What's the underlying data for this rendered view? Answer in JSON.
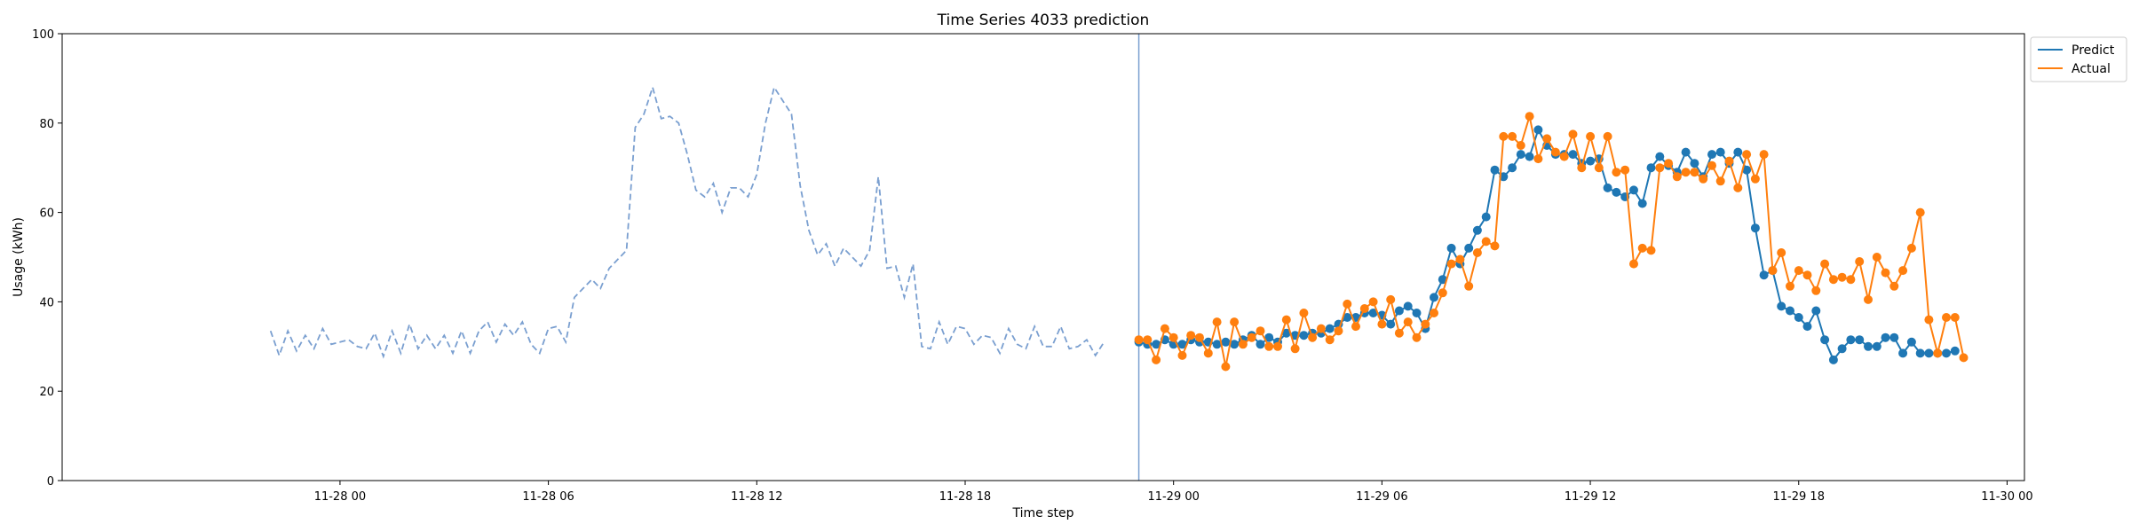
{
  "chart_data": {
    "type": "line",
    "title": "Time Series 4033 prediction",
    "xlabel": "Time step",
    "ylabel": "Usage (kWh)",
    "ylim": [
      0,
      100
    ],
    "xlim": [
      "2024-11-27 16:00",
      "2024-11-30 00:30"
    ],
    "yticks": [
      0,
      20,
      40,
      60,
      80,
      100
    ],
    "xticks": [
      {
        "t": "2024-11-28 00:00",
        "label": "11-28 00"
      },
      {
        "t": "2024-11-28 06:00",
        "label": "11-28 06"
      },
      {
        "t": "2024-11-28 12:00",
        "label": "11-28 12"
      },
      {
        "t": "2024-11-28 18:00",
        "label": "11-28 18"
      },
      {
        "t": "2024-11-29 00:00",
        "label": "11-29 00"
      },
      {
        "t": "2024-11-29 06:00",
        "label": "11-29 06"
      },
      {
        "t": "2024-11-29 12:00",
        "label": "11-29 12"
      },
      {
        "t": "2024-11-29 18:00",
        "label": "11-29 18"
      },
      {
        "t": "2024-11-30 00:00",
        "label": "11-30 00"
      }
    ],
    "forecast_start": "2024-11-28 23:00",
    "legend_position": "top-right",
    "grid": false,
    "history": {
      "start": "2024-11-27 22:00",
      "step_minutes": 15,
      "style": "dashed",
      "color": "#7a9fd0",
      "values": [
        33.5,
        28,
        33.5,
        29,
        32.5,
        29.5,
        34,
        30.5,
        31,
        31.5,
        30,
        29.5,
        33,
        27.8,
        33.5,
        28.5,
        35,
        29.5,
        32.5,
        29.5,
        32.5,
        28.5,
        33.5,
        28.5,
        33.5,
        35.5,
        31,
        35,
        32.5,
        35.5,
        30.5,
        28.5,
        34,
        34.5,
        31,
        41,
        43,
        45,
        43,
        47.5,
        49.5,
        51.5,
        79,
        82,
        88,
        81,
        81.5,
        80,
        73,
        65,
        63.5,
        66.5,
        60,
        65.5,
        65.5,
        63.5,
        68.5,
        80,
        88,
        85,
        82,
        66,
        56,
        50.5,
        53,
        48,
        52,
        50,
        48,
        51.5,
        68,
        47.5,
        48,
        41,
        48.5,
        30,
        29.5,
        35.5,
        30.5,
        34.5,
        34,
        30.5,
        32.5,
        32,
        28.5,
        34,
        30.5,
        29.5,
        34.5,
        30,
        30,
        34.5,
        29.5,
        30,
        31.5,
        28,
        31
      ]
    },
    "series": [
      {
        "name": "Predict",
        "color": "#1f77b4",
        "start": "2024-11-28 23:00",
        "step_minutes": 15,
        "values": [
          31,
          30.5,
          30.5,
          31.5,
          30.5,
          30.5,
          31.5,
          31,
          31,
          30.5,
          31,
          30.5,
          31.5,
          32.5,
          30.5,
          32,
          31,
          33,
          32.5,
          32.5,
          33,
          33,
          34,
          35,
          36.5,
          36.5,
          37.5,
          37.5,
          37,
          35,
          38,
          39,
          37.5,
          34,
          41,
          45,
          52,
          48.5,
          52,
          56,
          59,
          69.5,
          68,
          70,
          73,
          72.5,
          78.5,
          75,
          73,
          73,
          73,
          71,
          71.5,
          72,
          65.5,
          64.5,
          63.5,
          65,
          62,
          70,
          72.5,
          70.5,
          69,
          73.5,
          71,
          68,
          73,
          73.5,
          71,
          73.5,
          69.5,
          56.5,
          46,
          47,
          39,
          38,
          36.5,
          34.5,
          38,
          31.5,
          27,
          29.5,
          31.5,
          31.5,
          30,
          30,
          32,
          32,
          28.5,
          31,
          28.5,
          28.5,
          28.5,
          28.5,
          29
        ]
      },
      {
        "name": "Actual",
        "color": "#ff7f0e",
        "start": "2024-11-28 23:00",
        "step_minutes": 15,
        "values": [
          31.5,
          31.5,
          27,
          34,
          32,
          28,
          32.5,
          32,
          28.5,
          35.5,
          25.5,
          35.5,
          30.5,
          32,
          33.5,
          30,
          30,
          36,
          29.5,
          37.5,
          32,
          34,
          31.5,
          33.5,
          39.5,
          34.5,
          38.5,
          40,
          35,
          40.5,
          33,
          35.5,
          32,
          35,
          37.5,
          42,
          48.5,
          49.5,
          43.5,
          51,
          53.5,
          52.5,
          77,
          77,
          75,
          81.5,
          72,
          76.5,
          73.5,
          72.5,
          77.5,
          70,
          77,
          70,
          77,
          69,
          69.5,
          48.5,
          52,
          51.5,
          70,
          71,
          68,
          69,
          69,
          67.5,
          70.5,
          67,
          71.5,
          65.5,
          73,
          67.5,
          73,
          47,
          51,
          43.5,
          47,
          46,
          42.5,
          48.5,
          45,
          45.5,
          45,
          49,
          40.5,
          50,
          46.5,
          43.5,
          47,
          52,
          60,
          36,
          28.5,
          36.5,
          36.5,
          27.5
        ]
      }
    ]
  }
}
